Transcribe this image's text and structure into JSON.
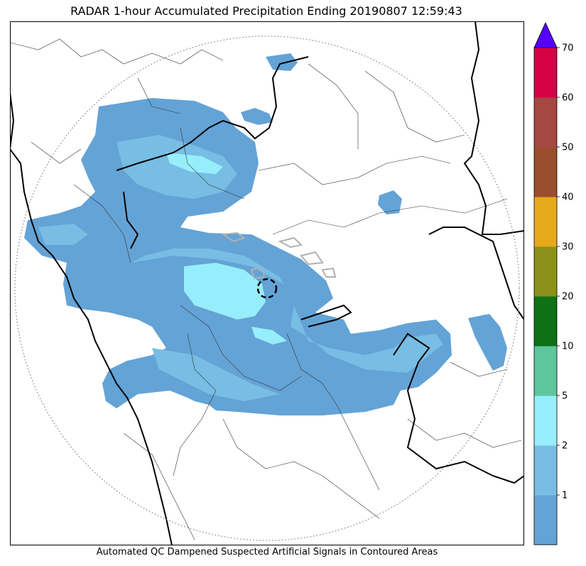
{
  "title": "RADAR 1-hour Accumulated Precipitation Ending 20190807 12:59:43",
  "footer": "Automated QC Dampened Suspected Artificial Signals in Contoured Areas",
  "colorbar": {
    "levels": [
      {
        "label": "",
        "color": "#64a3d6"
      },
      {
        "label": "1",
        "color": "#78bde3"
      },
      {
        "label": "2",
        "color": "#96eefc"
      },
      {
        "label": "5",
        "color": "#5fc59c"
      },
      {
        "label": "10",
        "color": "#0e7116"
      },
      {
        "label": "20",
        "color": "#8a9118"
      },
      {
        "label": "30",
        "color": "#e8a81c"
      },
      {
        "label": "40",
        "color": "#9a4e2c"
      },
      {
        "label": "50",
        "color": "#a54842"
      },
      {
        "label": "60",
        "color": "#d60046"
      }
    ],
    "top_label": "70",
    "extend_color": "#5500ff"
  }
}
